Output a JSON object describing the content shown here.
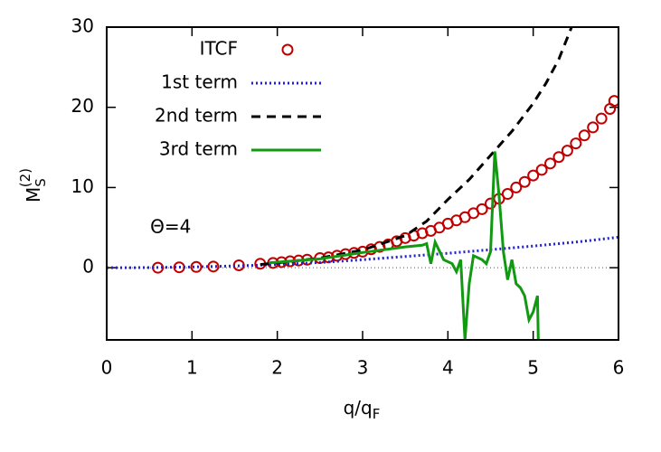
{
  "chart_data": {
    "type": "line",
    "xlabel": {
      "base": "q/q",
      "sub": "F"
    },
    "ylabel": {
      "base": "M",
      "sub": "S",
      "sup": "(2)"
    },
    "annotation": {
      "text": "Θ=4",
      "x": 0.75,
      "y": 5
    },
    "xlim": [
      0,
      6
    ],
    "xticks": [
      0,
      1,
      2,
      3,
      4,
      5,
      6
    ],
    "ylim": [
      -9,
      30
    ],
    "yticks": [
      0,
      10,
      20,
      30
    ],
    "zero_line": true,
    "legend": "top-left",
    "series": [
      {
        "name": "ITCF",
        "style": "points",
        "color": "#c00000",
        "x": [
          0.6,
          0.85,
          1.05,
          1.25,
          1.55,
          1.8,
          1.95,
          2.05,
          2.15,
          2.25,
          2.35,
          2.5,
          2.6,
          2.7,
          2.8,
          2.9,
          3.0,
          3.1,
          3.2,
          3.3,
          3.4,
          3.5,
          3.6,
          3.7,
          3.8,
          3.9,
          4.0,
          4.1,
          4.2,
          4.3,
          4.4,
          4.5,
          4.6,
          4.7,
          4.8,
          4.9,
          5.0,
          5.1,
          5.2,
          5.3,
          5.4,
          5.5,
          5.6,
          5.7,
          5.8,
          5.9,
          5.95
        ],
        "values": [
          0,
          0.05,
          0.1,
          0.15,
          0.3,
          0.5,
          0.6,
          0.7,
          0.8,
          0.9,
          1.0,
          1.2,
          1.3,
          1.5,
          1.7,
          1.85,
          2.0,
          2.3,
          2.6,
          2.9,
          3.3,
          3.7,
          4.0,
          4.3,
          4.6,
          5.0,
          5.5,
          5.9,
          6.3,
          6.8,
          7.3,
          8.0,
          8.6,
          9.2,
          10.0,
          10.7,
          11.5,
          12.2,
          13.0,
          13.8,
          14.6,
          15.5,
          16.5,
          17.5,
          18.6,
          19.8,
          20.8
        ]
      },
      {
        "name": "1st term",
        "style": "dotted",
        "color": "#2222cc",
        "x": [
          0,
          0.5,
          1,
          1.5,
          2,
          2.5,
          3,
          3.5,
          4,
          4.5,
          5,
          5.5,
          6
        ],
        "values": [
          0,
          0.02,
          0.1,
          0.22,
          0.4,
          0.65,
          1.0,
          1.4,
          1.8,
          2.25,
          2.7,
          3.2,
          3.8
        ]
      },
      {
        "name": "2nd term",
        "style": "dashed",
        "color": "#000000",
        "x": [
          1.8,
          2,
          2.5,
          3,
          3.5,
          3.75,
          4,
          4.25,
          4.5,
          4.75,
          5,
          5.15,
          5.3,
          5.45
        ],
        "values": [
          0.4,
          0.6,
          1.2,
          2.2,
          4.0,
          5.8,
          8.5,
          11,
          14,
          17,
          20.5,
          23,
          26,
          30
        ]
      },
      {
        "name": "3rd term",
        "style": "solid",
        "color": "#119911",
        "x": [
          1.9,
          2.5,
          3,
          3.5,
          3.7,
          3.75,
          3.8,
          3.85,
          3.95,
          4.05,
          4.1,
          4.15,
          4.2,
          4.25,
          4.3,
          4.4,
          4.45,
          4.5,
          4.55,
          4.6,
          4.65,
          4.7,
          4.75,
          4.8,
          4.85,
          4.9,
          4.95,
          5.0,
          5.05,
          5.06
        ],
        "values": [
          0.6,
          1.1,
          1.9,
          2.6,
          2.8,
          3.0,
          0.5,
          3.2,
          1.0,
          0.5,
          -0.5,
          1.0,
          -9,
          -2,
          1.5,
          1.0,
          0.5,
          2.0,
          14.5,
          9,
          2,
          -1.5,
          1.0,
          -2,
          -2.5,
          -3.5,
          -6.5,
          -5.5,
          -3.5,
          -9
        ]
      }
    ]
  }
}
